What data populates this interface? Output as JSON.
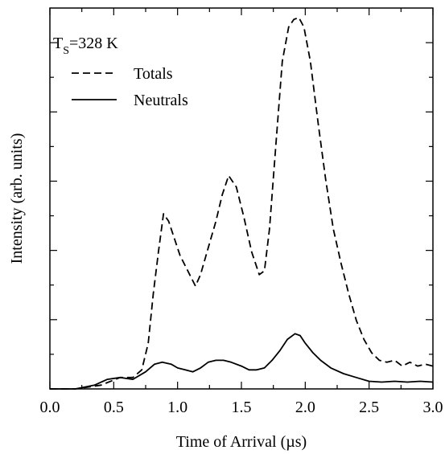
{
  "chart_data": {
    "type": "line",
    "title": "",
    "xlabel": "Time of Arrival (µs)",
    "ylabel": "Intensity (arb. units)",
    "xlim": [
      0.0,
      3.0
    ],
    "ylim": [
      0,
      1
    ],
    "x_ticks": [
      "0.0",
      "0.5",
      "1.0",
      "1.5",
      "2.0",
      "2.5",
      "3.0"
    ],
    "y_tick_labels_shown": false,
    "grid": false,
    "annotation": {
      "main": "T",
      "sub": "S",
      "rest": "=328 K"
    },
    "legend": {
      "position": "top-left",
      "entries": [
        {
          "label": "Totals",
          "style": "dashed"
        },
        {
          "label": "Neutrals",
          "style": "solid"
        }
      ]
    },
    "series": [
      {
        "name": "Totals",
        "style": "dashed",
        "color": "#000000",
        "points": [
          [
            0.0,
            0.0
          ],
          [
            0.2,
            0.0
          ],
          [
            0.4,
            0.01
          ],
          [
            0.55,
            0.03
          ],
          [
            0.65,
            0.03
          ],
          [
            0.72,
            0.05
          ],
          [
            0.77,
            0.12
          ],
          [
            0.81,
            0.25
          ],
          [
            0.85,
            0.36
          ],
          [
            0.89,
            0.46
          ],
          [
            0.93,
            0.44
          ],
          [
            0.97,
            0.4
          ],
          [
            1.02,
            0.35
          ],
          [
            1.08,
            0.31
          ],
          [
            1.14,
            0.27
          ],
          [
            1.18,
            0.3
          ],
          [
            1.24,
            0.37
          ],
          [
            1.3,
            0.44
          ],
          [
            1.35,
            0.51
          ],
          [
            1.4,
            0.56
          ],
          [
            1.46,
            0.53
          ],
          [
            1.52,
            0.45
          ],
          [
            1.58,
            0.36
          ],
          [
            1.64,
            0.3
          ],
          [
            1.68,
            0.31
          ],
          [
            1.72,
            0.42
          ],
          [
            1.77,
            0.64
          ],
          [
            1.82,
            0.86
          ],
          [
            1.87,
            0.95
          ],
          [
            1.91,
            0.97
          ],
          [
            1.95,
            0.975
          ],
          [
            1.99,
            0.95
          ],
          [
            2.04,
            0.86
          ],
          [
            2.1,
            0.7
          ],
          [
            2.16,
            0.55
          ],
          [
            2.22,
            0.42
          ],
          [
            2.28,
            0.33
          ],
          [
            2.34,
            0.25
          ],
          [
            2.4,
            0.18
          ],
          [
            2.46,
            0.13
          ],
          [
            2.52,
            0.095
          ],
          [
            2.58,
            0.075
          ],
          [
            2.64,
            0.07
          ],
          [
            2.7,
            0.075
          ],
          [
            2.76,
            0.06
          ],
          [
            2.82,
            0.07
          ],
          [
            2.88,
            0.06
          ],
          [
            2.94,
            0.065
          ],
          [
            3.0,
            0.06
          ]
        ]
      },
      {
        "name": "Neutrals",
        "style": "solid",
        "color": "#000000",
        "points": [
          [
            0.0,
            0.0
          ],
          [
            0.2,
            0.0
          ],
          [
            0.35,
            0.01
          ],
          [
            0.45,
            0.025
          ],
          [
            0.55,
            0.03
          ],
          [
            0.65,
            0.025
          ],
          [
            0.75,
            0.045
          ],
          [
            0.82,
            0.065
          ],
          [
            0.88,
            0.07
          ],
          [
            0.95,
            0.065
          ],
          [
            1.0,
            0.055
          ],
          [
            1.06,
            0.05
          ],
          [
            1.12,
            0.045
          ],
          [
            1.18,
            0.055
          ],
          [
            1.24,
            0.07
          ],
          [
            1.3,
            0.075
          ],
          [
            1.36,
            0.075
          ],
          [
            1.42,
            0.07
          ],
          [
            1.5,
            0.06
          ],
          [
            1.56,
            0.05
          ],
          [
            1.62,
            0.05
          ],
          [
            1.68,
            0.055
          ],
          [
            1.74,
            0.075
          ],
          [
            1.8,
            0.1
          ],
          [
            1.86,
            0.13
          ],
          [
            1.92,
            0.145
          ],
          [
            1.96,
            0.14
          ],
          [
            2.0,
            0.12
          ],
          [
            2.06,
            0.095
          ],
          [
            2.12,
            0.075
          ],
          [
            2.2,
            0.055
          ],
          [
            2.3,
            0.04
          ],
          [
            2.4,
            0.03
          ],
          [
            2.5,
            0.02
          ],
          [
            2.6,
            0.018
          ],
          [
            2.7,
            0.02
          ],
          [
            2.8,
            0.018
          ],
          [
            2.9,
            0.02
          ],
          [
            3.0,
            0.018
          ]
        ]
      }
    ]
  }
}
